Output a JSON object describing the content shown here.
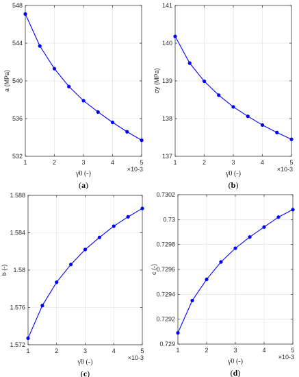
{
  "chart_data": [
    {
      "type": "line",
      "panel_label_open": "(",
      "panel_label_letter": "a",
      "panel_label_close": ")",
      "ylabel": "a (MPa)",
      "xlabel": "γ̇0 (-)",
      "x_exponent": "×10-3",
      "x": [
        1,
        1.5,
        2,
        2.5,
        3,
        3.5,
        4,
        4.5,
        5
      ],
      "y": [
        547.1,
        543.7,
        541.3,
        539.4,
        537.9,
        536.7,
        535.6,
        534.6,
        533.7
      ],
      "xlim": [
        1,
        5
      ],
      "ylim": [
        532,
        548
      ],
      "xticks": [
        1,
        2,
        3,
        4,
        5
      ],
      "yticks": [
        532,
        536,
        540,
        544,
        548
      ],
      "ytick_labels": [
        "532",
        "536",
        "540",
        "544",
        "548"
      ],
      "grid": true,
      "color": "#0000ff"
    },
    {
      "type": "line",
      "panel_label_open": "(",
      "panel_label_letter": "b",
      "panel_label_close": ")",
      "ylabel": "σy (MPa)",
      "xlabel": "γ̇0 (-)",
      "x_exponent": "×10-3",
      "x": [
        1,
        1.5,
        2,
        2.5,
        3,
        3.5,
        4,
        4.5,
        5
      ],
      "y": [
        140.18,
        139.47,
        138.99,
        138.62,
        138.31,
        138.06,
        137.83,
        137.63,
        137.45
      ],
      "xlim": [
        1,
        5
      ],
      "ylim": [
        137,
        141
      ],
      "xticks": [
        1,
        2,
        3,
        4,
        5
      ],
      "yticks": [
        137,
        138,
        139,
        140,
        141
      ],
      "ytick_labels": [
        "137",
        "138",
        "139",
        "140",
        "141"
      ],
      "grid": true,
      "color": "#0000ff"
    },
    {
      "type": "line",
      "panel_label_open": "(",
      "panel_label_letter": "c",
      "panel_label_close": ")",
      "ylabel": "b (-)",
      "xlabel": "γ̇0 (-)",
      "x_exponent": "×10-3",
      "x": [
        1,
        1.5,
        2,
        2.5,
        3,
        3.5,
        4,
        4.5,
        5
      ],
      "y": [
        1.5727,
        1.5762,
        1.5787,
        1.5806,
        1.5822,
        1.5835,
        1.5847,
        1.5857,
        1.5866
      ],
      "xlim": [
        1,
        5
      ],
      "ylim": [
        1.572,
        1.588
      ],
      "xticks": [
        1,
        2,
        3,
        4,
        5
      ],
      "yticks": [
        1.572,
        1.576,
        1.58,
        1.584,
        1.588
      ],
      "ytick_labels": [
        "1.572",
        "1.576",
        "1.58",
        "1.584",
        "1.588"
      ],
      "grid": true,
      "color": "#0000ff"
    },
    {
      "type": "line",
      "panel_label_open": "(",
      "panel_label_letter": "d",
      "panel_label_close": ")",
      "ylabel": "c (-)",
      "xlabel": "γ̇0 (-)",
      "x_exponent": "×10-3",
      "x": [
        1,
        1.5,
        2,
        2.5,
        3,
        3.5,
        4,
        4.5,
        5
      ],
      "y": [
        0.72909,
        0.72935,
        0.72952,
        0.72966,
        0.72977,
        0.72986,
        0.72994,
        0.73002,
        0.73008
      ],
      "xlim": [
        1,
        5
      ],
      "ylim": [
        0.729,
        0.7302
      ],
      "xticks": [
        1,
        2,
        3,
        4,
        5
      ],
      "yticks": [
        0.729,
        0.7292,
        0.7294,
        0.7296,
        0.7298,
        0.73,
        0.7302
      ],
      "ytick_labels": [
        "0.729",
        "0.7292",
        "0.7294",
        "0.7296",
        "0.7298",
        "0.73",
        "0.7302"
      ],
      "grid": true,
      "color": "#0000ff"
    }
  ]
}
